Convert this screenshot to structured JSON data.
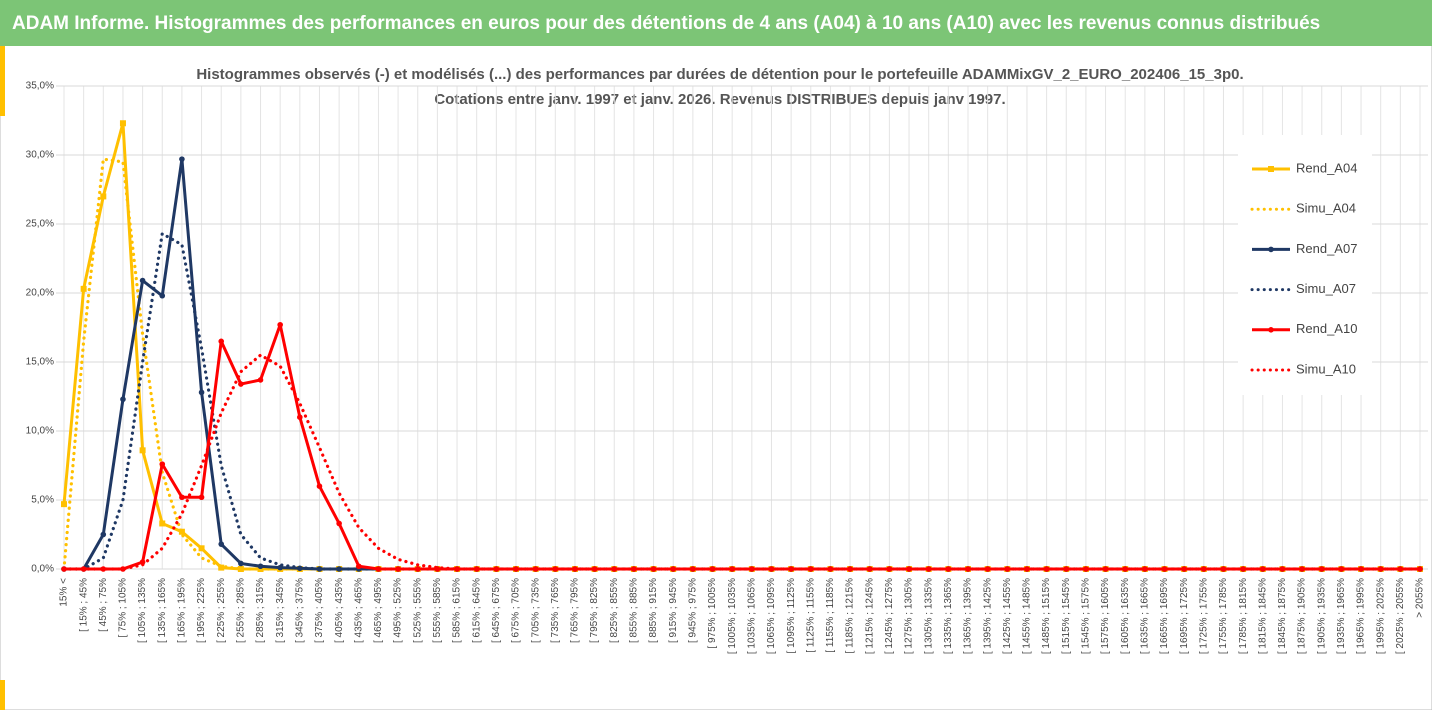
{
  "header": {
    "title": "ADAM Informe. Histogrammes des performances en euros pour des détentions de 4 ans (A04) à 10 ans (A10) avec les revenus connus distribués"
  },
  "chart_data": {
    "type": "line",
    "title": "Histogrammes observés (-) et modélisés (...) des performances par durées de détention pour  le portefeuille ADAMMixGV_2_EURO_202406_15_3p0.",
    "subtitle": "Cotations  entre janv. 1997 et janv. 2026. Revenus DISTRIBUES depuis janv 1997.",
    "categories": [
      "15% <",
      "[ 15% ; 45%",
      "[ 45% ; 75%",
      "[ 75% ; 105%",
      "[ 105% ; 135%",
      "[ 135% ; 165%",
      "[ 165% ; 195%",
      "[ 195% ; 225%",
      "[ 225% ; 255%",
      "[ 255% ; 285%",
      "[ 285% ; 315%",
      "[ 315% ; 345%",
      "[ 345% ; 375%",
      "[ 375% ; 405%",
      "[ 405% ; 435%",
      "[ 435% ; 465%",
      "[ 465% ; 495%",
      "[ 495% ; 525%",
      "[ 525% ; 555%",
      "[ 555% ; 585%",
      "[ 585% ; 615%",
      "[ 615% ; 645%",
      "[ 645% ; 675%",
      "[ 675% ; 705%",
      "[ 705% ; 735%",
      "[ 735% ; 765%",
      "[ 765% ; 795%",
      "[ 795% ; 825%",
      "[ 825% ; 855%",
      "[ 855% ; 885%",
      "[ 885% ; 915%",
      "[ 915% ; 945%",
      "[ 945% ; 975%",
      "[ 975% ; 1005%",
      "[ 1005% ; 1035%",
      "[ 1035% ; 1065%",
      "[ 1065% ; 1095%",
      "[ 1095% ; 1125%",
      "[ 1125% ; 1155%",
      "[ 1155% ; 1185%",
      "[ 1185% ; 1215%",
      "[ 1215% ; 1245%",
      "[ 1245% ; 1275%",
      "[ 1275% ; 1305%",
      "[ 1305% ; 1335%",
      "[ 1335% ; 1365%",
      "[ 1365% ; 1395%",
      "[ 1395% ; 1425%",
      "[ 1425% ; 1455%",
      "[ 1455% ; 1485%",
      "[ 1485% ; 1515%",
      "[ 1515% ; 1545%",
      "[ 1545% ; 1575%",
      "[ 1575% ; 1605%",
      "[ 1605% ; 1635%",
      "[ 1635% ; 1665%",
      "[ 1665% ; 1695%",
      "[ 1695% ; 1725%",
      "[ 1725% ; 1755%",
      "[ 1755% ; 1785%",
      "[ 1785% ; 1815%",
      "[ 1815% ; 1845%",
      "[ 1845% ; 1875%",
      "[ 1875% ; 1905%",
      "[ 1905% ; 1935%",
      "[ 1935% ; 1965%",
      "[ 1965% ; 1995%",
      "[ 1995% ; 2025%",
      "[ 2025% ; 2055%",
      "> 2055%"
    ],
    "series": [
      {
        "name": "Rend_A04",
        "color": "#ffc000",
        "dashed": false,
        "marker": "square",
        "values": [
          4.7,
          20.3,
          27,
          32.3,
          8.6,
          3.3,
          2.7,
          1.5,
          0.1,
          0,
          0,
          0,
          0,
          0,
          0,
          0,
          0,
          0,
          0,
          0,
          0,
          0,
          0,
          0,
          0,
          0,
          0,
          0,
          0,
          0,
          0,
          0,
          0,
          0,
          0,
          0,
          0,
          0,
          0,
          0,
          0,
          0,
          0,
          0,
          0,
          0,
          0,
          0,
          0,
          0,
          0,
          0,
          0,
          0,
          0,
          0,
          0,
          0,
          0,
          0,
          0,
          0,
          0,
          0,
          0,
          0,
          0,
          0,
          0,
          0
        ]
      },
      {
        "name": "Simu_A04",
        "color": "#ffc000",
        "dashed": true,
        "values": [
          0,
          16.5,
          29.7,
          29.5,
          17,
          7,
          2.5,
          0.8,
          0.2,
          0,
          0,
          0,
          0,
          0,
          0,
          0,
          0,
          0,
          0,
          0,
          0,
          0,
          0,
          0,
          0,
          0,
          0,
          0,
          0,
          0,
          0,
          0,
          0,
          0,
          0,
          0,
          0,
          0,
          0,
          0,
          0,
          0,
          0,
          0,
          0,
          0,
          0,
          0,
          0,
          0,
          0,
          0,
          0,
          0,
          0,
          0,
          0,
          0,
          0,
          0,
          0,
          0,
          0,
          0,
          0,
          0,
          0,
          0,
          0,
          0
        ]
      },
      {
        "name": "Rend_A07",
        "color": "#1f3864",
        "dashed": false,
        "marker": "circle",
        "values": [
          0,
          0,
          2.5,
          12.3,
          20.9,
          19.8,
          29.7,
          12.8,
          1.8,
          0.4,
          0.2,
          0.1,
          0.05,
          0,
          0,
          0,
          0,
          0,
          0,
          0,
          0,
          0,
          0,
          0,
          0,
          0,
          0,
          0,
          0,
          0,
          0,
          0,
          0,
          0,
          0,
          0,
          0,
          0,
          0,
          0,
          0,
          0,
          0,
          0,
          0,
          0,
          0,
          0,
          0,
          0,
          0,
          0,
          0,
          0,
          0,
          0,
          0,
          0,
          0,
          0,
          0,
          0,
          0,
          0,
          0,
          0,
          0,
          0,
          0,
          0
        ]
      },
      {
        "name": "Simu_A07",
        "color": "#1f3864",
        "dashed": true,
        "values": [
          0,
          0,
          0.8,
          5,
          15,
          24.3,
          23.5,
          16,
          7.5,
          2.5,
          0.8,
          0.3,
          0.1,
          0,
          0,
          0,
          0,
          0,
          0,
          0,
          0,
          0,
          0,
          0,
          0,
          0,
          0,
          0,
          0,
          0,
          0,
          0,
          0,
          0,
          0,
          0,
          0,
          0,
          0,
          0,
          0,
          0,
          0,
          0,
          0,
          0,
          0,
          0,
          0,
          0,
          0,
          0,
          0,
          0,
          0,
          0,
          0,
          0,
          0,
          0,
          0,
          0,
          0,
          0,
          0,
          0,
          0,
          0,
          0,
          0
        ]
      },
      {
        "name": "Rend_A10",
        "color": "#ff0000",
        "dashed": false,
        "marker": "circle",
        "values": [
          0,
          0,
          0,
          0,
          0.5,
          7.6,
          5.2,
          5.2,
          16.5,
          13.4,
          13.7,
          17.7,
          11,
          6,
          3.3,
          0.2,
          0,
          0,
          0,
          0,
          0,
          0,
          0,
          0,
          0,
          0,
          0,
          0,
          0,
          0,
          0,
          0,
          0,
          0,
          0,
          0,
          0,
          0,
          0,
          0,
          0,
          0,
          0,
          0,
          0,
          0,
          0,
          0,
          0,
          0,
          0,
          0,
          0,
          0,
          0,
          0,
          0,
          0,
          0,
          0,
          0,
          0,
          0,
          0,
          0,
          0,
          0,
          0,
          0,
          0
        ]
      },
      {
        "name": "Simu_A10",
        "color": "#ff0000",
        "dashed": true,
        "values": [
          0,
          0,
          0,
          0,
          0.3,
          1.5,
          4,
          7.5,
          11.3,
          14.3,
          15.5,
          14.7,
          12,
          8.8,
          5.5,
          3,
          1.5,
          0.7,
          0.3,
          0.1,
          0,
          0,
          0,
          0,
          0,
          0,
          0,
          0,
          0,
          0,
          0,
          0,
          0,
          0,
          0,
          0,
          0,
          0,
          0,
          0,
          0,
          0,
          0,
          0,
          0,
          0,
          0,
          0,
          0,
          0,
          0,
          0,
          0,
          0,
          0,
          0,
          0,
          0,
          0,
          0,
          0,
          0,
          0,
          0,
          0,
          0,
          0,
          0,
          0,
          0
        ]
      }
    ],
    "ylim": [
      0,
      35
    ],
    "yticks": [
      {
        "value": 0,
        "label": "0,0%"
      },
      {
        "value": 5,
        "label": "5,0%"
      },
      {
        "value": 10,
        "label": "10,0%"
      },
      {
        "value": 15,
        "label": "15,0%"
      },
      {
        "value": 20,
        "label": "20,0%"
      },
      {
        "value": 25,
        "label": "25,0%"
      },
      {
        "value": 30,
        "label": "30,0%"
      },
      {
        "value": 35,
        "label": "35,0%"
      }
    ],
    "grid": true,
    "legend": "right"
  }
}
